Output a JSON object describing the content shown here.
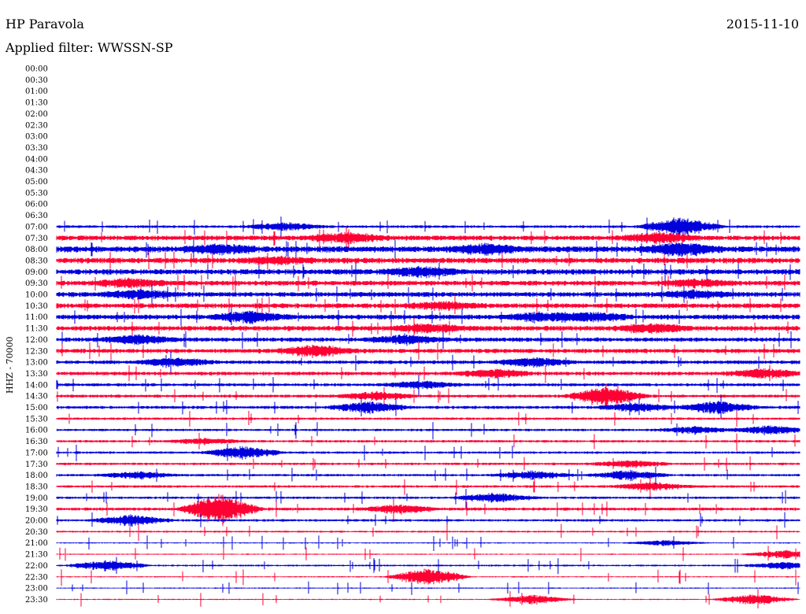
{
  "header": {
    "station": "HP Paravola",
    "date": "2015-11-10",
    "filter": "Applied filter: WWSSN-SP",
    "channel": "HHZ - 70000"
  },
  "colors": {
    "background": "#ffffff",
    "text": "#000000",
    "trace_red": "#ff0033",
    "trace_blue": "#0000dd"
  },
  "chart_data": {
    "type": "line",
    "title": "",
    "xlabel": "",
    "ylabel": "HHZ - 70000",
    "ticks": [
      "00:00",
      "00:30",
      "01:00",
      "01:30",
      "02:00",
      "02:30",
      "03:00",
      "03:30",
      "04:00",
      "04:30",
      "05:00",
      "05:30",
      "06:00",
      "06:30",
      "07:00",
      "07:30",
      "08:00",
      "08:30",
      "09:00",
      "09:30",
      "10:00",
      "10:30",
      "11:00",
      "11:30",
      "12:00",
      "12:30",
      "13:00",
      "13:30",
      "14:00",
      "14:30",
      "15:00",
      "15:30",
      "16:00",
      "16:30",
      "17:00",
      "17:30",
      "18:00",
      "18:30",
      "19:00",
      "19:30",
      "20:00",
      "20:30",
      "21:00",
      "21:30",
      "22:00",
      "22:30",
      "23:00",
      "23:30"
    ],
    "data_start_row": 14,
    "colors": [
      "#0000dd",
      "#ff0033"
    ],
    "trace_amplitude_relative": [
      0,
      0,
      0,
      0,
      0,
      0,
      0,
      0,
      0,
      0,
      0,
      0,
      0,
      0,
      0.45,
      0.8,
      1.0,
      0.9,
      0.9,
      0.8,
      0.8,
      0.8,
      0.8,
      0.8,
      0.7,
      0.7,
      0.6,
      0.6,
      0.5,
      0.5,
      0.5,
      0.4,
      0.4,
      0.4,
      0.4,
      0.4,
      0.4,
      0.4,
      0.4,
      0.5,
      0.4,
      0.3,
      0.2,
      0.2,
      0.3,
      0.2,
      0.2,
      0.2
    ],
    "events": [
      {
        "row": "07:00",
        "at": 0.31,
        "strength": 0.6
      },
      {
        "row": "07:00",
        "at": 0.84,
        "strength": 1.4
      },
      {
        "row": "07:30",
        "at": 0.39,
        "strength": 0.7
      },
      {
        "row": "07:30",
        "at": 0.81,
        "strength": 0.7
      },
      {
        "row": "08:00",
        "at": 0.22,
        "strength": 0.6
      },
      {
        "row": "08:00",
        "at": 0.58,
        "strength": 0.6
      },
      {
        "row": "08:00",
        "at": 0.84,
        "strength": 0.8
      },
      {
        "row": "08:30",
        "at": 0.3,
        "strength": 0.4
      },
      {
        "row": "09:00",
        "at": 0.49,
        "strength": 0.6
      },
      {
        "row": "09:30",
        "at": 0.1,
        "strength": 0.6
      },
      {
        "row": "09:30",
        "at": 0.86,
        "strength": 0.5
      },
      {
        "row": "10:00",
        "at": 0.11,
        "strength": 0.6
      },
      {
        "row": "10:00",
        "at": 0.86,
        "strength": 0.5
      },
      {
        "row": "10:30",
        "at": 0.52,
        "strength": 0.5
      },
      {
        "row": "11:00",
        "at": 0.26,
        "strength": 0.8
      },
      {
        "row": "11:00",
        "at": 0.65,
        "strength": 0.6
      },
      {
        "row": "11:00",
        "at": 0.72,
        "strength": 0.6
      },
      {
        "row": "11:30",
        "at": 0.5,
        "strength": 0.6
      },
      {
        "row": "11:30",
        "at": 0.8,
        "strength": 0.6
      },
      {
        "row": "12:00",
        "at": 0.11,
        "strength": 0.6
      },
      {
        "row": "12:00",
        "at": 0.47,
        "strength": 0.6
      },
      {
        "row": "12:30",
        "at": 0.35,
        "strength": 0.8
      },
      {
        "row": "13:00",
        "at": 0.16,
        "strength": 0.6
      },
      {
        "row": "13:00",
        "at": 0.64,
        "strength": 0.6
      },
      {
        "row": "13:30",
        "at": 0.59,
        "strength": 0.6
      },
      {
        "row": "13:30",
        "at": 0.95,
        "strength": 0.7
      },
      {
        "row": "14:00",
        "at": 0.49,
        "strength": 0.5
      },
      {
        "row": "14:30",
        "at": 0.43,
        "strength": 0.6
      },
      {
        "row": "14:30",
        "at": 0.74,
        "strength": 1.4
      },
      {
        "row": "15:00",
        "at": 0.42,
        "strength": 0.8
      },
      {
        "row": "15:00",
        "at": 0.78,
        "strength": 0.6
      },
      {
        "row": "15:00",
        "at": 0.89,
        "strength": 0.9
      },
      {
        "row": "16:00",
        "at": 0.86,
        "strength": 0.5
      },
      {
        "row": "16:00",
        "at": 0.96,
        "strength": 0.6
      },
      {
        "row": "16:30",
        "at": 0.2,
        "strength": 0.4
      },
      {
        "row": "17:00",
        "at": 0.25,
        "strength": 0.9
      },
      {
        "row": "17:30",
        "at": 0.77,
        "strength": 0.5
      },
      {
        "row": "18:00",
        "at": 0.11,
        "strength": 0.5
      },
      {
        "row": "18:00",
        "at": 0.64,
        "strength": 0.6
      },
      {
        "row": "18:00",
        "at": 0.77,
        "strength": 0.7
      },
      {
        "row": "18:30",
        "at": 0.8,
        "strength": 0.6
      },
      {
        "row": "19:00",
        "at": 0.59,
        "strength": 0.7
      },
      {
        "row": "19:30",
        "at": 0.22,
        "strength": 2.2
      },
      {
        "row": "19:30",
        "at": 0.46,
        "strength": 0.6
      },
      {
        "row": "20:00",
        "at": 0.1,
        "strength": 0.8
      },
      {
        "row": "21:00",
        "at": 0.82,
        "strength": 0.4
      },
      {
        "row": "21:30",
        "at": 0.98,
        "strength": 0.6
      },
      {
        "row": "22:00",
        "at": 0.07,
        "strength": 0.8
      },
      {
        "row": "22:00",
        "at": 0.98,
        "strength": 0.5
      },
      {
        "row": "22:30",
        "at": 0.5,
        "strength": 1.4
      },
      {
        "row": "23:30",
        "at": 0.64,
        "strength": 0.7
      },
      {
        "row": "23:30",
        "at": 0.94,
        "strength": 0.8
      }
    ]
  }
}
